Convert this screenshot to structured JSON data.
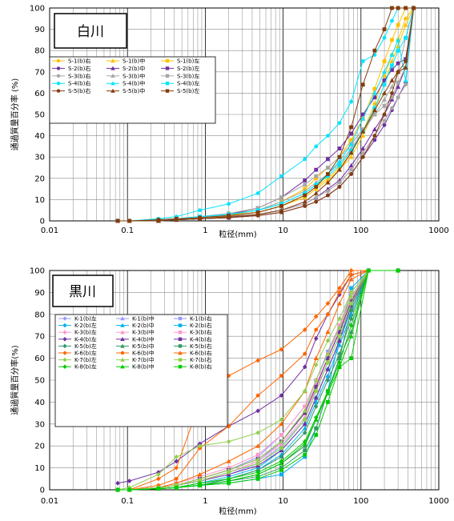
{
  "chart_data": [
    {
      "type": "line",
      "title": "白川",
      "xlabel": "粒径(mm)",
      "ylabel": "通過質量百分率 (%)",
      "x_scale": "log",
      "xlim": [
        0.01,
        1000
      ],
      "ylim": [
        0,
        100
      ],
      "x_tick_labels": [
        "0.01",
        "0.1",
        "1",
        "10",
        "100",
        "1000"
      ],
      "y_tick_labels": [
        "0",
        "10",
        "20",
        "30",
        "40",
        "50",
        "60",
        "70",
        "80",
        "90",
        "100"
      ],
      "grid": true,
      "legend_placement": "left",
      "x": [
        0.075,
        0.106,
        0.25,
        0.425,
        0.85,
        2,
        4.75,
        9.5,
        19,
        26.5,
        37.5,
        53,
        75,
        106,
        150,
        200,
        250,
        300,
        375,
        475
      ],
      "series": [
        {
          "name": "S-1(b)右",
          "color": "#ffc000",
          "marker": "circle",
          "values": [
            0,
            0,
            0.5,
            1,
            1.5,
            2.5,
            4,
            7,
            12,
            16,
            20,
            25,
            32,
            42,
            55,
            68,
            78,
            85,
            95,
            100
          ]
        },
        {
          "name": "S-1(b)中",
          "color": "#ffc000",
          "marker": "triangle",
          "values": [
            0,
            0,
            0.5,
            1,
            1.5,
            2.5,
            4,
            7,
            11,
            15,
            19,
            24,
            30,
            40,
            52,
            64,
            75,
            82,
            92,
            100
          ]
        },
        {
          "name": "S-1(b)左",
          "color": "#ffc000",
          "marker": "square",
          "values": [
            0,
            0,
            0.5,
            1,
            1.5,
            2.5,
            5,
            9,
            15,
            20,
            25,
            30,
            38,
            48,
            62,
            75,
            85,
            92,
            100,
            100
          ]
        },
        {
          "name": "S-2(b)右",
          "color": "#7030a0",
          "marker": "circle",
          "values": [
            0,
            0,
            0,
            0.5,
            1,
            1.5,
            2.5,
            4,
            7,
            9,
            12,
            16,
            22,
            30,
            38,
            45,
            52,
            58,
            65,
            100
          ]
        },
        {
          "name": "S-2(b)中",
          "color": "#7030a0",
          "marker": "triangle",
          "values": [
            0,
            0,
            0,
            0.5,
            1,
            1.5,
            3,
            5,
            8,
            11,
            15,
            19,
            26,
            34,
            43,
            50,
            57,
            63,
            72,
            100
          ]
        },
        {
          "name": "S-2(b)左",
          "color": "#7030a0",
          "marker": "square",
          "values": [
            0,
            0,
            0.5,
            1,
            1.5,
            3,
            6,
            11,
            19,
            24,
            29,
            34,
            41,
            50,
            58,
            66,
            71,
            74,
            76,
            100
          ]
        },
        {
          "name": "S-3(b)右",
          "color": "#a6a6a6",
          "marker": "circle",
          "values": [
            0,
            0,
            0,
            0.5,
            1,
            2,
            3,
            5,
            8,
            11,
            14,
            18,
            24,
            32,
            40,
            47,
            53,
            58,
            64,
            100
          ]
        },
        {
          "name": "S-3(b)中",
          "color": "#a6a6a6",
          "marker": "triangle",
          "values": [
            0,
            0,
            0.5,
            1,
            1.5,
            3,
            5,
            9,
            14,
            18,
            22,
            27,
            34,
            42,
            50,
            57,
            63,
            70,
            86,
            100
          ]
        },
        {
          "name": "S-3(b)左",
          "color": "#a6a6a6",
          "marker": "square",
          "values": [
            0,
            0,
            0.5,
            1,
            2,
            3.5,
            6,
            11,
            17,
            21,
            25,
            30,
            36,
            43,
            50,
            54,
            58,
            65,
            72,
            100
          ]
        },
        {
          "name": "S-4(b)右",
          "color": "#00e5ff",
          "marker": "circle",
          "values": [
            0,
            0,
            1,
            2,
            5,
            8,
            13,
            21,
            29,
            35,
            40,
            46,
            56,
            75,
            78,
            86,
            94,
            100,
            100,
            100
          ]
        },
        {
          "name": "S-4(b)中",
          "color": "#00e5ff",
          "marker": "triangle",
          "values": [
            0,
            0,
            0.5,
            1,
            2,
            3,
            5,
            8,
            13,
            17,
            22,
            28,
            36,
            48,
            60,
            70,
            78,
            85,
            66,
            100
          ]
        },
        {
          "name": "S-4(b)左",
          "color": "#00e5ff",
          "marker": "square",
          "values": [
            0,
            0,
            0.5,
            1,
            2,
            3,
            5,
            8,
            13,
            17,
            21,
            26,
            33,
            42,
            53,
            64,
            73,
            80,
            86,
            100
          ]
        },
        {
          "name": "S-5(b)右",
          "color": "#843c0c",
          "marker": "circle",
          "values": [
            0,
            0,
            0,
            0.5,
            1,
            1.5,
            2.5,
            4,
            7,
            9,
            12,
            16,
            22,
            30,
            40,
            50,
            60,
            70,
            75,
            100
          ]
        },
        {
          "name": "S-5(b)中",
          "color": "#843c0c",
          "marker": "triangle",
          "values": [
            0,
            0,
            0,
            0.5,
            1,
            2,
            3,
            5,
            9,
            13,
            18,
            24,
            32,
            42,
            52,
            60,
            66,
            70,
            72,
            100
          ]
        },
        {
          "name": "S-5(b)左",
          "color": "#843c0c",
          "marker": "square",
          "values": [
            0,
            0,
            0.5,
            1,
            1.5,
            2.5,
            4,
            7,
            12,
            16,
            22,
            30,
            44,
            64,
            80,
            90,
            100,
            100,
            100,
            100
          ]
        }
      ]
    },
    {
      "type": "line",
      "title": "黒川",
      "xlabel": "粒径(mm)",
      "ylabel": "通過質量百分率(%)",
      "x_scale": "log",
      "xlim": [
        0.01,
        1000
      ],
      "ylim": [
        0,
        100
      ],
      "x_tick_labels": [
        "0.01",
        "0.1",
        "1",
        "10",
        "100",
        "1000"
      ],
      "y_tick_labels": [
        "0",
        "10",
        "20",
        "30",
        "40",
        "50",
        "60",
        "70",
        "80",
        "90",
        "100"
      ],
      "grid": true,
      "legend_placement": "left",
      "x": [
        0.075,
        0.106,
        0.25,
        0.425,
        0.85,
        2,
        4.75,
        9.5,
        19,
        26.5,
        37.5,
        53,
        75,
        125,
        300
      ],
      "series": [
        {
          "name": "K-1(b)左",
          "color": "#9999ff",
          "marker": "diamond",
          "values": [
            0,
            0,
            1,
            2,
            4,
            7,
            12,
            20,
            32,
            45,
            58,
            70,
            85,
            100,
            100
          ]
        },
        {
          "name": "K-1(b)中",
          "color": "#9999ff",
          "marker": "triangle",
          "values": [
            0,
            0,
            1,
            2,
            4,
            8,
            13,
            22,
            35,
            48,
            60,
            72,
            88,
            100,
            100
          ]
        },
        {
          "name": "K-1(b)右",
          "color": "#9999ff",
          "marker": "square",
          "values": [
            0,
            0,
            1,
            2,
            5,
            9,
            15,
            25,
            38,
            50,
            63,
            75,
            90,
            100,
            100
          ]
        },
        {
          "name": "K-2(b)左",
          "color": "#00b0f0",
          "marker": "diamond",
          "values": [
            0,
            0,
            0.5,
            1,
            3,
            6,
            10,
            18,
            30,
            42,
            55,
            68,
            82,
            100,
            100
          ]
        },
        {
          "name": "K-2(b)中",
          "color": "#00b0f0",
          "marker": "triangle",
          "values": [
            0,
            0,
            0.5,
            1,
            2,
            5,
            9,
            16,
            28,
            40,
            52,
            66,
            80,
            100,
            100
          ]
        },
        {
          "name": "K-2(b)右",
          "color": "#00b0f0",
          "marker": "square",
          "values": [
            0,
            0,
            0.5,
            1,
            2,
            3,
            5,
            7,
            15,
            28,
            45,
            70,
            92,
            100,
            100
          ]
        },
        {
          "name": "K-3(b)左",
          "color": "#ff99cc",
          "marker": "diamond",
          "values": [
            0,
            0,
            1,
            2,
            5,
            9,
            14,
            22,
            35,
            48,
            60,
            73,
            87,
            100,
            100
          ]
        },
        {
          "name": "K-3(b)中",
          "color": "#ff99cc",
          "marker": "triangle",
          "values": [
            0,
            0,
            1,
            2,
            4,
            8,
            13,
            21,
            33,
            46,
            58,
            70,
            85,
            100,
            100
          ]
        },
        {
          "name": "K-3(b)右",
          "color": "#ff99cc",
          "marker": "square",
          "values": [
            0,
            0,
            1,
            3,
            6,
            10,
            16,
            25,
            38,
            50,
            62,
            75,
            90,
            100,
            100
          ]
        },
        {
          "name": "K-4(b)左",
          "color": "#7030a0",
          "marker": "diamond",
          "values": [
            3,
            4,
            8,
            13,
            21,
            29,
            36,
            43,
            56,
            69,
            80,
            89,
            98,
            100,
            100
          ]
        },
        {
          "name": "K-4(b)中",
          "color": "#7030a0",
          "marker": "triangle",
          "values": [
            0,
            0,
            1,
            2,
            4,
            7,
            11,
            18,
            30,
            42,
            55,
            68,
            84,
            100,
            100
          ]
        },
        {
          "name": "K-4(b)右",
          "color": "#7030a0",
          "marker": "square",
          "values": [
            0,
            0,
            1,
            2,
            5,
            9,
            14,
            22,
            35,
            47,
            60,
            72,
            86,
            100,
            100
          ]
        },
        {
          "name": "K-5(b)左",
          "color": "#339966",
          "marker": "diamond",
          "values": [
            0,
            0,
            0.5,
            1,
            2,
            5,
            9,
            15,
            26,
            38,
            50,
            62,
            78,
            100,
            100
          ]
        },
        {
          "name": "K-5(b)中",
          "color": "#339966",
          "marker": "triangle",
          "values": [
            0,
            0,
            0.5,
            1,
            2,
            4,
            7,
            12,
            20,
            32,
            45,
            60,
            72,
            100,
            100
          ]
        },
        {
          "name": "K-5(b)右",
          "color": "#339966",
          "marker": "square",
          "values": [
            0,
            0,
            0.5,
            1,
            2,
            4,
            6,
            10,
            18,
            28,
            45,
            60,
            82,
            100,
            100
          ]
        },
        {
          "name": "K-6(b)左",
          "color": "#ff6600",
          "marker": "diamond",
          "values": [
            0,
            0,
            5,
            10,
            40,
            52,
            59,
            64,
            73,
            79,
            85,
            92,
            100,
            100,
            100
          ]
        },
        {
          "name": "K-6(b)中",
          "color": "#ff6600",
          "marker": "circle",
          "values": [
            0,
            0,
            2,
            5,
            19,
            29,
            43,
            52,
            62,
            73,
            80,
            90,
            98,
            100,
            100
          ]
        },
        {
          "name": "K-6(b)右",
          "color": "#ff6600",
          "marker": "triangle",
          "values": [
            0,
            0,
            1,
            3,
            7,
            13,
            20,
            30,
            45,
            60,
            72,
            85,
            96,
            100,
            100
          ]
        },
        {
          "name": "K-7(b)左",
          "color": "#92d050",
          "marker": "diamond",
          "values": [
            0,
            1,
            7,
            15,
            20,
            22,
            26,
            32,
            45,
            57,
            68,
            78,
            90,
            100,
            100
          ]
        },
        {
          "name": "K-7(b)中",
          "color": "#92d050",
          "marker": "triangle",
          "values": [
            0,
            0,
            1,
            2,
            5,
            9,
            14,
            22,
            36,
            50,
            62,
            74,
            88,
            100,
            100
          ]
        },
        {
          "name": "K-7(b)右",
          "color": "#92d050",
          "marker": "square",
          "values": [
            0,
            0,
            1,
            2,
            4,
            8,
            12,
            19,
            32,
            45,
            58,
            70,
            85,
            100,
            100
          ]
        },
        {
          "name": "K-8(b)左",
          "color": "#00cc00",
          "marker": "diamond",
          "values": [
            0,
            0,
            0.5,
            1,
            3,
            5,
            8,
            13,
            22,
            33,
            45,
            58,
            75,
            100,
            100
          ]
        },
        {
          "name": "K-8(b)中",
          "color": "#00cc00",
          "marker": "triangle",
          "values": [
            0,
            0,
            0.5,
            1,
            2,
            4,
            7,
            12,
            21,
            32,
            44,
            56,
            70,
            100,
            100
          ]
        },
        {
          "name": "K-8(b)右",
          "color": "#00cc00",
          "marker": "square",
          "values": [
            0,
            0,
            0.5,
            1,
            2,
            3,
            5,
            9,
            16,
            25,
            40,
            56,
            60,
            100,
            100
          ]
        }
      ]
    }
  ]
}
